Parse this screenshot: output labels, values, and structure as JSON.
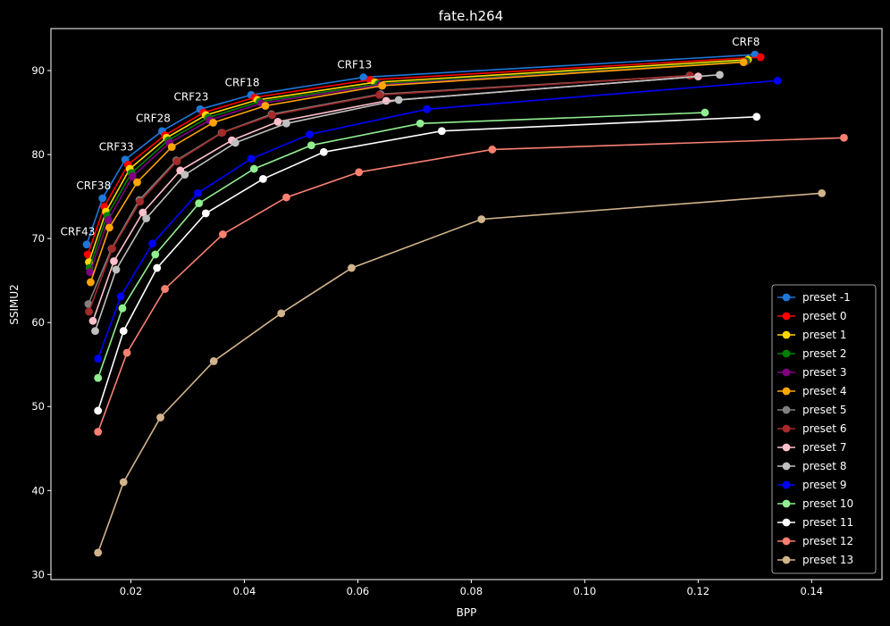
{
  "chart_data": {
    "type": "line",
    "title": "fate.h264",
    "xlabel": "BPP",
    "ylabel": "SSIMU2",
    "xlim": [
      0.0059,
      0.1524
    ],
    "ylim": [
      29.4,
      95.0
    ],
    "xticks": [
      0.02,
      0.04,
      0.06,
      0.08,
      0.1,
      0.12,
      0.14
    ],
    "xtick_labels": [
      "0.02",
      "0.04",
      "0.06",
      "0.08",
      "0.10",
      "0.12",
      "0.14"
    ],
    "yticks": [
      30,
      40,
      50,
      60,
      70,
      80,
      90
    ],
    "ytick_labels": [
      "30",
      "40",
      "50",
      "60",
      "70",
      "80",
      "90"
    ],
    "grid": false,
    "legend_position": "lower-right",
    "annotations": [
      {
        "text": "CRF43",
        "x": 0.0122,
        "y": 69.3
      },
      {
        "text": "CRF38",
        "x": 0.015,
        "y": 74.8
      },
      {
        "text": "CRF33",
        "x": 0.019,
        "y": 79.4
      },
      {
        "text": "CRF28",
        "x": 0.0255,
        "y": 82.8
      },
      {
        "text": "CRF23",
        "x": 0.0322,
        "y": 85.4
      },
      {
        "text": "CRF18",
        "x": 0.0412,
        "y": 87.1
      },
      {
        "text": "CRF13",
        "x": 0.061,
        "y": 89.2
      },
      {
        "text": "CRF8",
        "x": 0.13,
        "y": 91.9
      }
    ],
    "series": [
      {
        "name": "preset -1",
        "color": "#1e77d9",
        "x": [
          0.0122,
          0.015,
          0.019,
          0.0255,
          0.0322,
          0.0412,
          0.061,
          0.13
        ],
        "y": [
          69.3,
          74.8,
          79.4,
          82.8,
          85.4,
          87.1,
          89.2,
          91.9
        ]
      },
      {
        "name": "preset 0",
        "color": "#ff0000",
        "x": [
          0.0124,
          0.0153,
          0.0195,
          0.026,
          0.0328,
          0.0418,
          0.0622,
          0.131
        ],
        "y": [
          68.1,
          73.8,
          78.8,
          82.3,
          85.0,
          86.8,
          88.9,
          91.6
        ]
      },
      {
        "name": "preset 1",
        "color": "#ffd700",
        "x": [
          0.0126,
          0.0156,
          0.0198,
          0.0263,
          0.0332,
          0.0423,
          0.063,
          0.1288
        ],
        "y": [
          67.2,
          73.2,
          78.3,
          82.0,
          84.7,
          86.5,
          88.6,
          91.3
        ]
      },
      {
        "name": "preset 2",
        "color": "#008000",
        "x": [
          0.0127,
          0.0158,
          0.0201,
          0.0266,
          0.0336,
          0.0427,
          0.0636,
          0.1285
        ],
        "y": [
          66.5,
          72.7,
          77.8,
          81.7,
          84.4,
          86.3,
          88.4,
          91.1
        ]
      },
      {
        "name": "preset 3",
        "color": "#800080",
        "x": [
          0.0128,
          0.016,
          0.0203,
          0.0268,
          0.0339,
          0.043,
          0.064,
          0.1282
        ],
        "y": [
          66.0,
          72.2,
          77.4,
          81.4,
          84.1,
          86.1,
          88.3,
          91.0
        ]
      },
      {
        "name": "preset 4",
        "color": "#ffa500",
        "x": [
          0.0129,
          0.0162,
          0.0211,
          0.0272,
          0.0345,
          0.0437,
          0.0643,
          0.128
        ],
        "y": [
          64.8,
          71.3,
          76.7,
          80.9,
          83.8,
          85.8,
          88.2,
          91.0
        ]
      },
      {
        "name": "preset 5",
        "color": "#808080",
        "x": [
          0.0125,
          0.0166,
          0.0215,
          0.028,
          0.036,
          0.0448,
          0.064,
          0.1185
        ],
        "y": [
          62.2,
          68.8,
          74.6,
          79.3,
          82.6,
          84.8,
          87.2,
          89.4
        ]
      },
      {
        "name": "preset 6",
        "color": "#a52a2a",
        "x": [
          0.0126,
          0.0167,
          0.0216,
          0.0281,
          0.0361,
          0.0449,
          0.0638,
          0.1186
        ],
        "y": [
          61.3,
          68.8,
          74.4,
          79.2,
          82.6,
          84.7,
          87.1,
          89.4
        ]
      },
      {
        "name": "preset 7",
        "color": "#ffc0cb",
        "x": [
          0.0133,
          0.017,
          0.0221,
          0.0287,
          0.0378,
          0.0459,
          0.065,
          0.12
        ],
        "y": [
          60.2,
          67.3,
          73.1,
          78.1,
          81.7,
          83.9,
          86.4,
          89.3
        ]
      },
      {
        "name": "preset 8",
        "color": "#c0c0c0",
        "x": [
          0.0137,
          0.0174,
          0.0227,
          0.0295,
          0.0384,
          0.0474,
          0.0672,
          0.1238
        ],
        "y": [
          59.0,
          66.3,
          72.4,
          77.6,
          81.4,
          83.7,
          86.5,
          89.5
        ]
      },
      {
        "name": "preset 9",
        "color": "#0000ff",
        "x": [
          0.0142,
          0.0182,
          0.0238,
          0.0318,
          0.0412,
          0.0515,
          0.0722,
          0.134
        ],
        "y": [
          55.7,
          63.1,
          69.4,
          75.4,
          79.5,
          82.4,
          85.4,
          88.8
        ]
      },
      {
        "name": "preset 10",
        "color": "#90ee90",
        "x": [
          0.0142,
          0.0185,
          0.0243,
          0.032,
          0.0417,
          0.0518,
          0.071,
          0.1212
        ],
        "y": [
          53.4,
          61.7,
          68.1,
          74.2,
          78.3,
          81.1,
          83.7,
          85.0
        ]
      },
      {
        "name": "preset 11",
        "color": "#ffffff",
        "x": [
          0.0142,
          0.0187,
          0.0246,
          0.0332,
          0.0433,
          0.054,
          0.0748,
          0.1303
        ],
        "y": [
          49.5,
          59.0,
          66.5,
          73.0,
          77.1,
          80.3,
          82.8,
          84.5
        ]
      },
      {
        "name": "preset 12",
        "color": "#fa8072",
        "x": [
          0.0142,
          0.0193,
          0.026,
          0.0362,
          0.0474,
          0.0602,
          0.0837,
          0.1457
        ],
        "y": [
          47.0,
          56.4,
          64.0,
          70.5,
          74.9,
          77.9,
          80.6,
          82.0
        ]
      },
      {
        "name": "preset 13",
        "color": "#d2b48c",
        "x": [
          0.0142,
          0.0187,
          0.0252,
          0.0346,
          0.0465,
          0.0589,
          0.0818,
          0.1418
        ],
        "y": [
          32.6,
          41.0,
          48.7,
          55.4,
          61.1,
          66.5,
          72.3,
          75.4
        ]
      }
    ]
  }
}
